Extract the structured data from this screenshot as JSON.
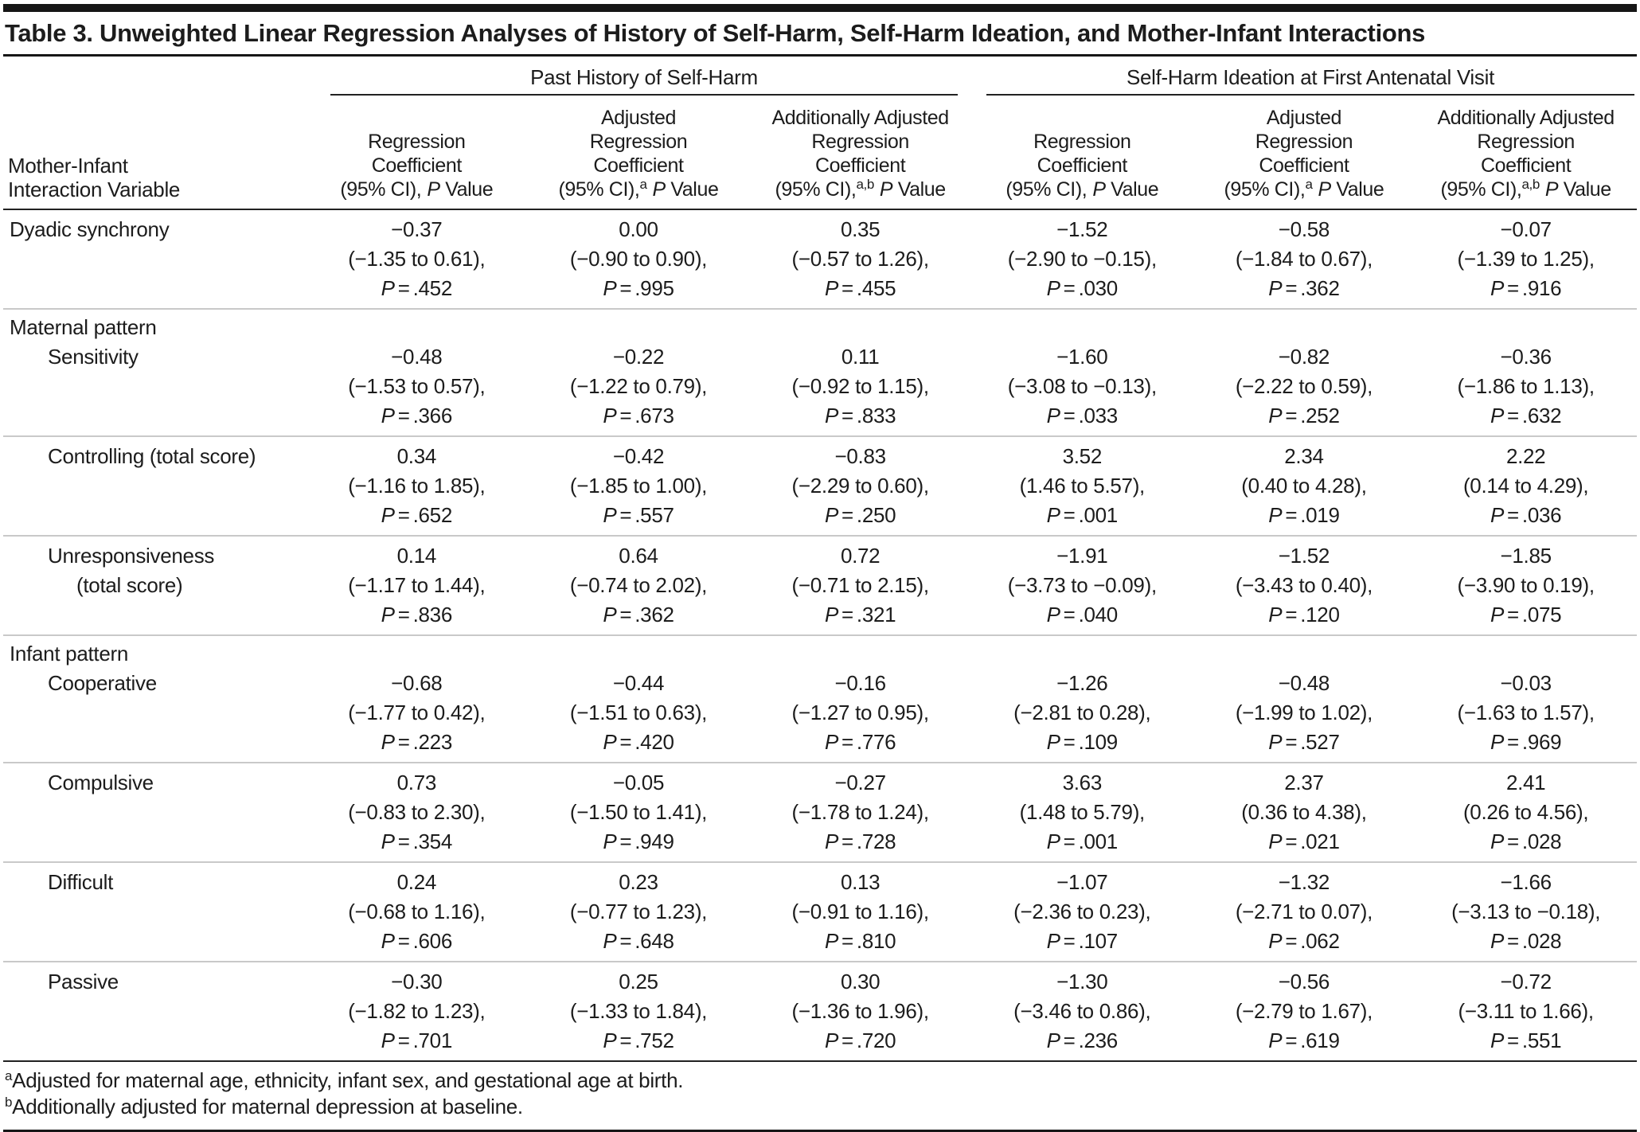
{
  "title": "Table 3. Unweighted Linear Regression Analyses of History of Self-Harm, Self-Harm Ideation, and Mother-Infant Interactions",
  "symbols": {
    "p": "P",
    "eq": "="
  },
  "header": {
    "row_label_lines": [
      "Mother-Infant",
      "Interaction Variable"
    ],
    "groups": [
      {
        "label": "Past History of Self-Harm"
      },
      {
        "label": "Self-Harm Ideation at First Antenatal Visit"
      }
    ],
    "columns": [
      {
        "lines": [
          "Regression",
          "Coefficient"
        ],
        "ci": "(95% CI),",
        "sup": "",
        "value": "Value"
      },
      {
        "lines": [
          "Adjusted",
          "Regression",
          "Coefficient"
        ],
        "ci": "(95% CI),",
        "sup": "a",
        "value": "Value"
      },
      {
        "lines": [
          "Additionally Adjusted",
          "Regression",
          "Coefficient"
        ],
        "ci": "(95% CI),",
        "sup": "a,b",
        "value": "Value"
      },
      {
        "lines": [
          "Regression",
          "Coefficient"
        ],
        "ci": "(95% CI),",
        "sup": "",
        "value": "Value"
      },
      {
        "lines": [
          "Adjusted",
          "Regression",
          "Coefficient"
        ],
        "ci": "(95% CI),",
        "sup": "a",
        "value": "Value"
      },
      {
        "lines": [
          "Additionally Adjusted",
          "Regression",
          "Coefficient"
        ],
        "ci": "(95% CI),",
        "sup": "a,b",
        "value": "Value"
      }
    ]
  },
  "rows": [
    {
      "section": null,
      "label": [
        "Dyadic synchrony"
      ],
      "indent": 0,
      "cells": [
        {
          "coef": "−0.37",
          "ci": "(−1.35 to 0.61),",
          "p": ".452"
        },
        {
          "coef": "0.00",
          "ci": "(−0.90 to 0.90),",
          "p": ".995"
        },
        {
          "coef": "0.35",
          "ci": "(−0.57 to 1.26),",
          "p": ".455"
        },
        {
          "coef": "−1.52",
          "ci": "(−2.90 to −0.15),",
          "p": ".030"
        },
        {
          "coef": "−0.58",
          "ci": "(−1.84 to 0.67),",
          "p": ".362"
        },
        {
          "coef": "−0.07",
          "ci": "(−1.39 to 1.25),",
          "p": ".916"
        }
      ]
    },
    {
      "section": "Maternal pattern",
      "label": [
        "Sensitivity"
      ],
      "indent": 1,
      "cells": [
        {
          "coef": "−0.48",
          "ci": "(−1.53 to 0.57),",
          "p": ".366"
        },
        {
          "coef": "−0.22",
          "ci": "(−1.22 to 0.79),",
          "p": ".673"
        },
        {
          "coef": "0.11",
          "ci": "(−0.92 to 1.15),",
          "p": ".833"
        },
        {
          "coef": "−1.60",
          "ci": "(−3.08 to −0.13),",
          "p": ".033"
        },
        {
          "coef": "−0.82",
          "ci": "(−2.22 to 0.59),",
          "p": ".252"
        },
        {
          "coef": "−0.36",
          "ci": "(−1.86 to 1.13),",
          "p": ".632"
        }
      ]
    },
    {
      "section": null,
      "label": [
        "Controlling (total score)"
      ],
      "indent": 1,
      "cells": [
        {
          "coef": "0.34",
          "ci": "(−1.16 to 1.85),",
          "p": ".652"
        },
        {
          "coef": "−0.42",
          "ci": "(−1.85 to 1.00),",
          "p": ".557"
        },
        {
          "coef": "−0.83",
          "ci": "(−2.29 to 0.60),",
          "p": ".250"
        },
        {
          "coef": "3.52",
          "ci": "(1.46 to 5.57),",
          "p": ".001"
        },
        {
          "coef": "2.34",
          "ci": "(0.40 to 4.28),",
          "p": ".019"
        },
        {
          "coef": "2.22",
          "ci": "(0.14 to 4.29),",
          "p": ".036"
        }
      ]
    },
    {
      "section": null,
      "label": [
        "Unresponsiveness",
        "(total score)"
      ],
      "indent": 1,
      "cells": [
        {
          "coef": "0.14",
          "ci": "(−1.17 to 1.44),",
          "p": ".836"
        },
        {
          "coef": "0.64",
          "ci": "(−0.74 to 2.02),",
          "p": ".362"
        },
        {
          "coef": "0.72",
          "ci": "(−0.71 to 2.15),",
          "p": ".321"
        },
        {
          "coef": "−1.91",
          "ci": "(−3.73 to −0.09),",
          "p": ".040"
        },
        {
          "coef": "−1.52",
          "ci": "(−3.43 to 0.40),",
          "p": ".120"
        },
        {
          "coef": "−1.85",
          "ci": "(−3.90 to 0.19),",
          "p": ".075"
        }
      ]
    },
    {
      "section": "Infant pattern",
      "label": [
        "Cooperative"
      ],
      "indent": 1,
      "cells": [
        {
          "coef": "−0.68",
          "ci": "(−1.77 to 0.42),",
          "p": ".223"
        },
        {
          "coef": "−0.44",
          "ci": "(−1.51 to 0.63),",
          "p": ".420"
        },
        {
          "coef": "−0.16",
          "ci": "(−1.27 to 0.95),",
          "p": ".776"
        },
        {
          "coef": "−1.26",
          "ci": "(−2.81 to 0.28),",
          "p": ".109"
        },
        {
          "coef": "−0.48",
          "ci": "(−1.99 to 1.02),",
          "p": ".527"
        },
        {
          "coef": "−0.03",
          "ci": "(−1.63 to 1.57),",
          "p": ".969"
        }
      ]
    },
    {
      "section": null,
      "label": [
        "Compulsive"
      ],
      "indent": 1,
      "cells": [
        {
          "coef": "0.73",
          "ci": "(−0.83 to 2.30),",
          "p": ".354"
        },
        {
          "coef": "−0.05",
          "ci": "(−1.50 to 1.41),",
          "p": ".949"
        },
        {
          "coef": "−0.27",
          "ci": "(−1.78 to 1.24),",
          "p": ".728"
        },
        {
          "coef": "3.63",
          "ci": "(1.48 to 5.79),",
          "p": ".001"
        },
        {
          "coef": "2.37",
          "ci": "(0.36 to 4.38),",
          "p": ".021"
        },
        {
          "coef": "2.41",
          "ci": "(0.26 to 4.56),",
          "p": ".028"
        }
      ]
    },
    {
      "section": null,
      "label": [
        "Difficult"
      ],
      "indent": 1,
      "cells": [
        {
          "coef": "0.24",
          "ci": "(−0.68 to 1.16),",
          "p": ".606"
        },
        {
          "coef": "0.23",
          "ci": "(−0.77 to 1.23),",
          "p": ".648"
        },
        {
          "coef": "0.13",
          "ci": "(−0.91 to 1.16),",
          "p": ".810"
        },
        {
          "coef": "−1.07",
          "ci": "(−2.36 to 0.23),",
          "p": ".107"
        },
        {
          "coef": "−1.32",
          "ci": "(−2.71 to 0.07),",
          "p": ".062"
        },
        {
          "coef": "−1.66",
          "ci": "(−3.13 to −0.18),",
          "p": ".028"
        }
      ]
    },
    {
      "section": null,
      "label": [
        "Passive"
      ],
      "indent": 1,
      "cells": [
        {
          "coef": "−0.30",
          "ci": "(−1.82 to 1.23),",
          "p": ".701"
        },
        {
          "coef": "0.25",
          "ci": "(−1.33 to 1.84),",
          "p": ".752"
        },
        {
          "coef": "0.30",
          "ci": "(−1.36 to 1.96),",
          "p": ".720"
        },
        {
          "coef": "−1.30",
          "ci": "(−3.46 to 0.86),",
          "p": ".236"
        },
        {
          "coef": "−0.56",
          "ci": "(−2.79 to 1.67),",
          "p": ".619"
        },
        {
          "coef": "−0.72",
          "ci": "(−3.11 to 1.66),",
          "p": ".551"
        }
      ]
    }
  ],
  "footnotes": [
    {
      "sup": "a",
      "text": "Adjusted for maternal age, ethnicity, infant sex, and gestational age at birth."
    },
    {
      "sup": "b",
      "text": "Additionally adjusted for maternal depression at baseline."
    }
  ]
}
